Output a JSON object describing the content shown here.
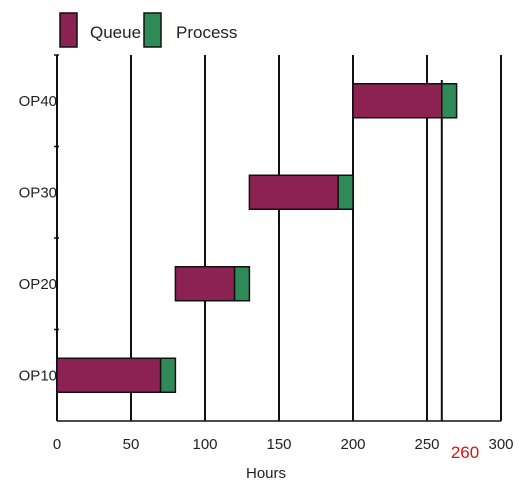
{
  "chart_data": {
    "type": "bar",
    "orientation": "horizontal-stacked",
    "categories": [
      "OP10",
      "OP20",
      "OP30",
      "OP40"
    ],
    "start": [
      0,
      80,
      130,
      200
    ],
    "series": [
      {
        "name": "Queue",
        "values": [
          70,
          40,
          60,
          60
        ],
        "color": "#8b2252"
      },
      {
        "name": "Process",
        "values": [
          10,
          10,
          10,
          10
        ],
        "color": "#2e8b57"
      }
    ],
    "xlabel": "Hours",
    "ylabel": "",
    "xlim": [
      0,
      300
    ],
    "xticks": [
      "0",
      "50",
      "100",
      "150",
      "200",
      "250",
      "300"
    ],
    "grid": "vertical",
    "legend_position": "top",
    "annotation": {
      "text": "260",
      "x": 260,
      "color": "#e01010"
    }
  }
}
